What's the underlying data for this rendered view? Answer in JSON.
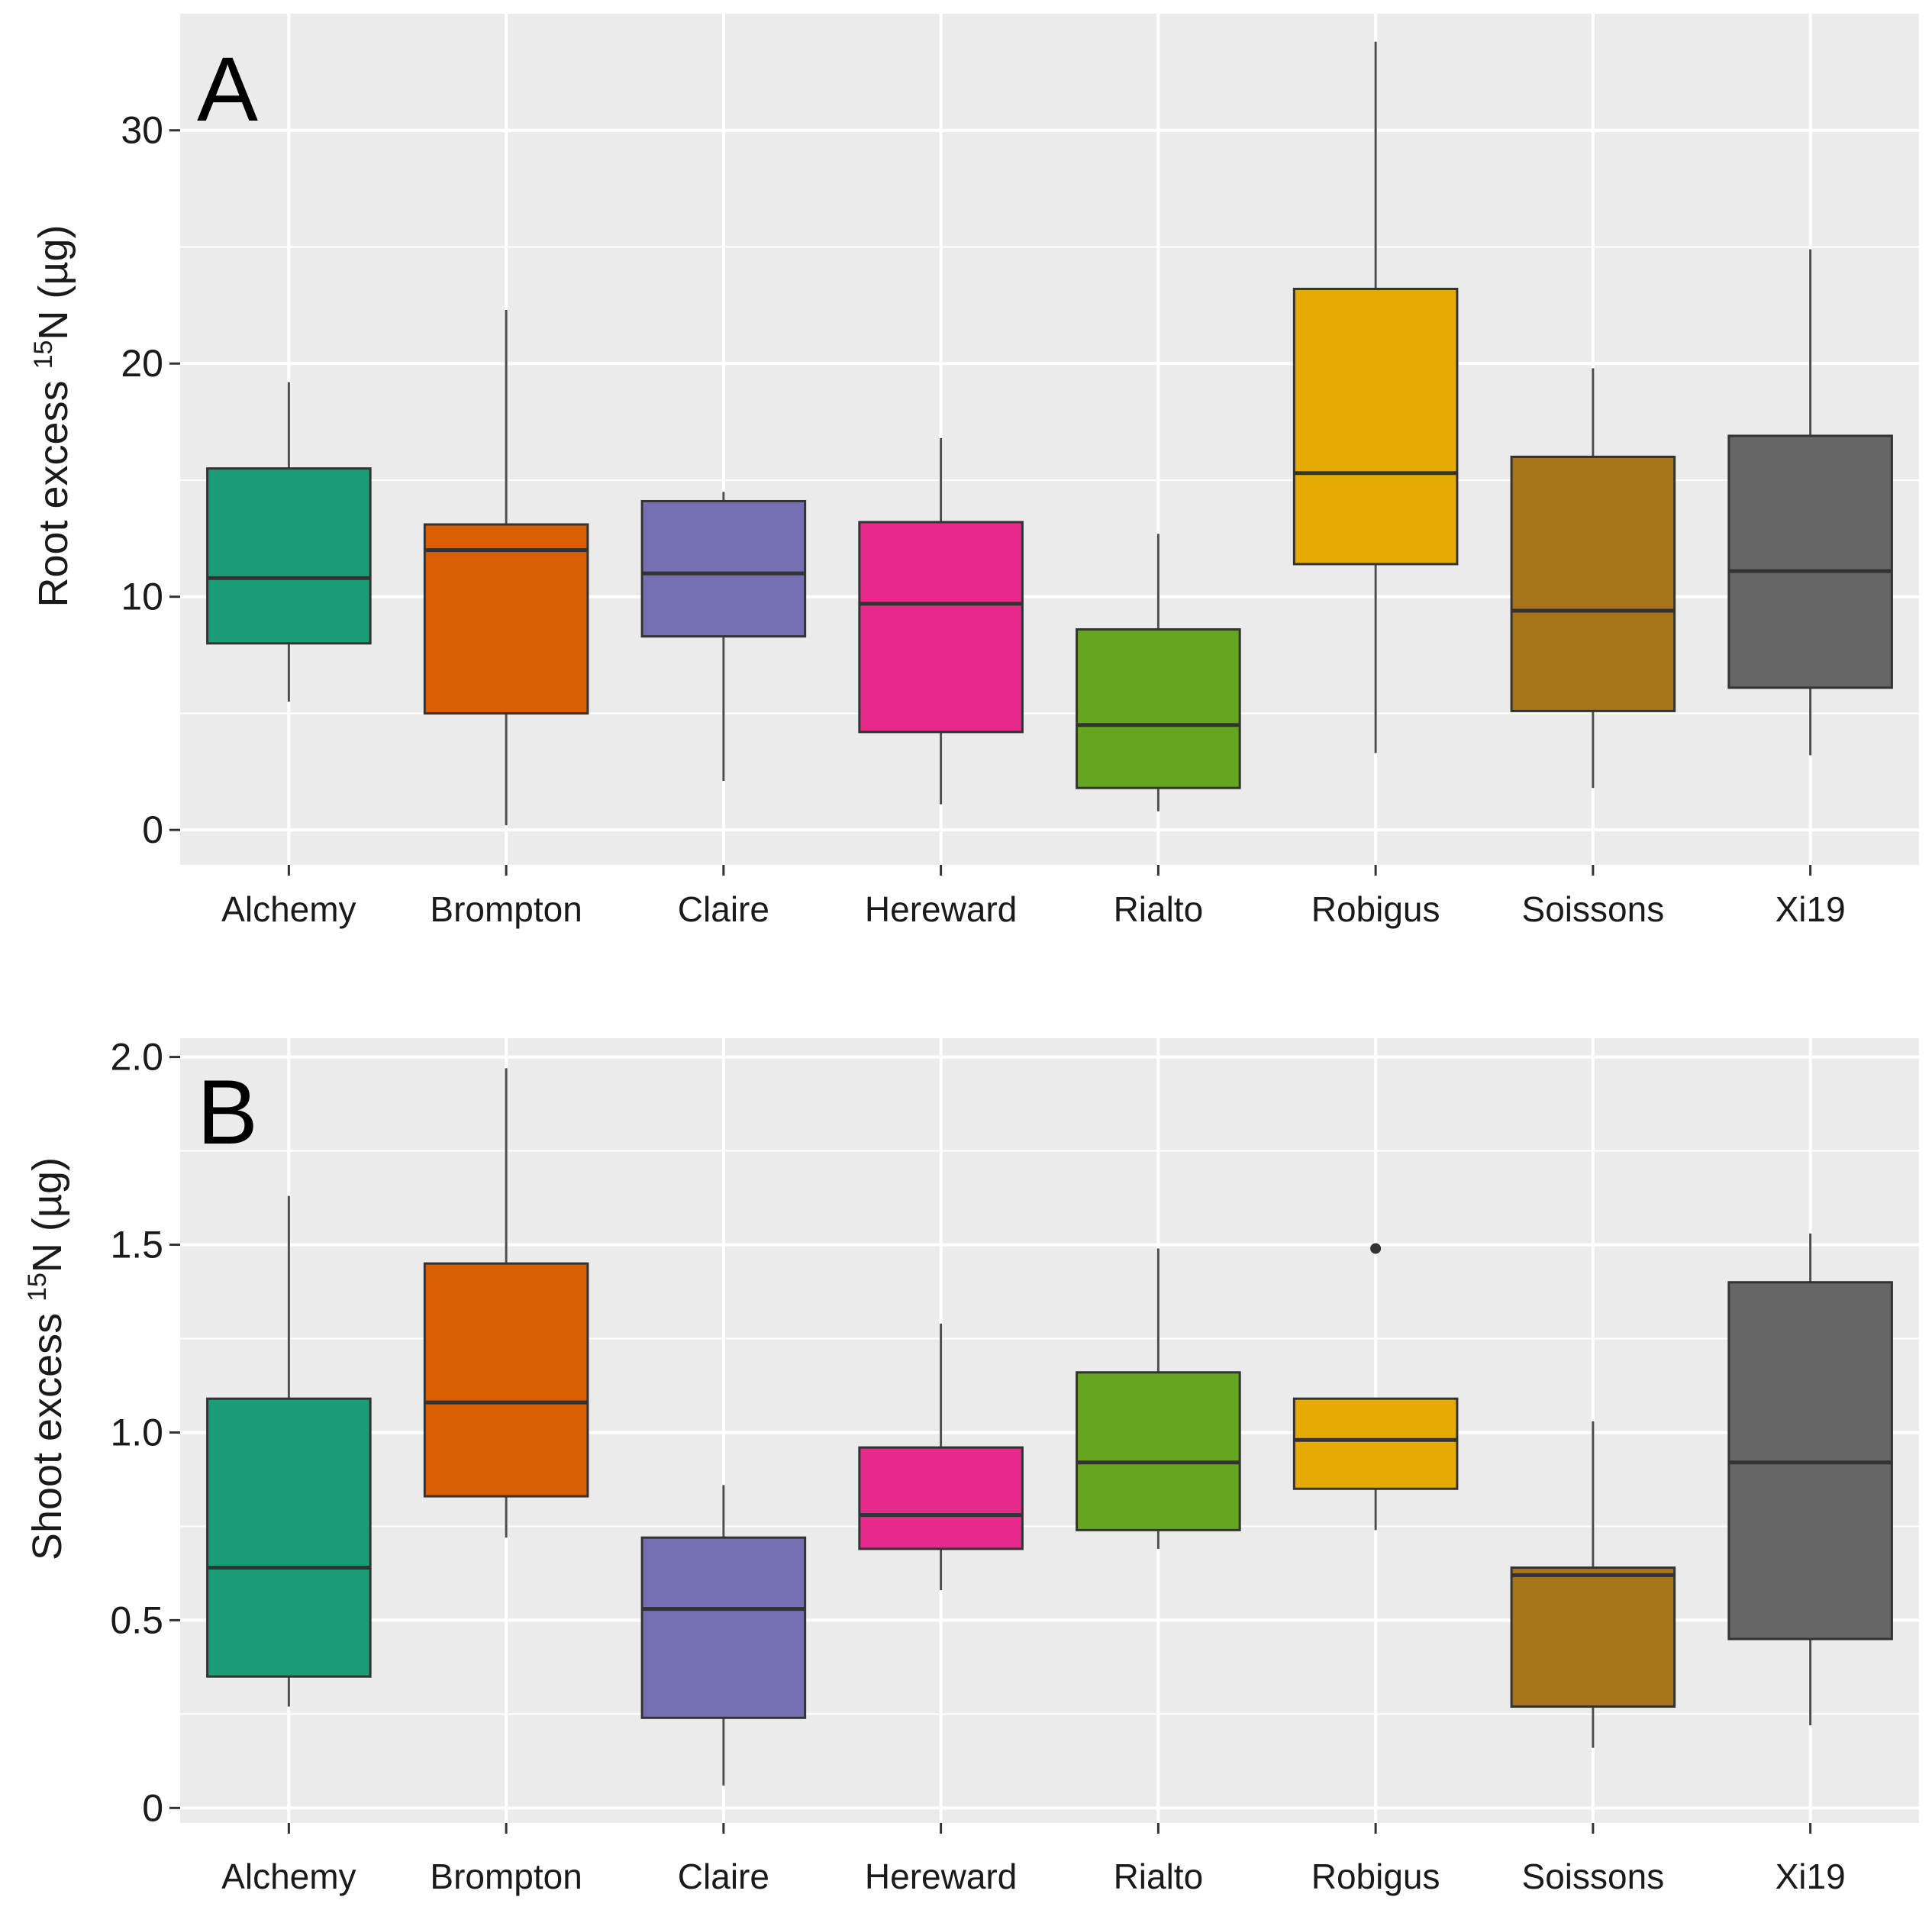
{
  "figure": {
    "background": "#ffffff",
    "panel_background": "#ebebeb",
    "grid_color": "#ffffff"
  },
  "chart_data": [
    {
      "type": "boxplot",
      "panel_label": "A",
      "ylabel_prefix": "Root excess ",
      "ylabel_superscript": "15",
      "ylabel_suffix": "N (µg)",
      "xlabel": "",
      "ylim": [
        -1.5,
        35
      ],
      "yticks": [
        0,
        10,
        20,
        30
      ],
      "ytick_labels": [
        "0",
        "10",
        "20",
        "30"
      ],
      "grid": true,
      "categories": [
        "Alchemy",
        "Brompton",
        "Claire",
        "Hereward",
        "Rialto",
        "Robigus",
        "Soissons",
        "Xi19"
      ],
      "colors": [
        "#1b9e77",
        "#d95f02",
        "#7570b3",
        "#e7298a",
        "#66a61e",
        "#e6ab02",
        "#a6761d",
        "#666666"
      ],
      "boxes": [
        {
          "low": 5.5,
          "q1": 8.0,
          "median": 10.8,
          "q3": 15.5,
          "high": 19.2,
          "outliers": []
        },
        {
          "low": 0.2,
          "q1": 5.0,
          "median": 12.0,
          "q3": 13.1,
          "high": 22.3,
          "outliers": []
        },
        {
          "low": 2.1,
          "q1": 8.3,
          "median": 11.0,
          "q3": 14.1,
          "high": 14.5,
          "outliers": []
        },
        {
          "low": 1.1,
          "q1": 4.2,
          "median": 9.7,
          "q3": 13.2,
          "high": 16.8,
          "outliers": []
        },
        {
          "low": 0.8,
          "q1": 1.8,
          "median": 4.5,
          "q3": 8.6,
          "high": 12.7,
          "outliers": []
        },
        {
          "low": 3.3,
          "q1": 11.4,
          "median": 15.3,
          "q3": 23.2,
          "high": 33.8,
          "outliers": []
        },
        {
          "low": 1.8,
          "q1": 5.1,
          "median": 9.4,
          "q3": 16.0,
          "high": 19.8,
          "outliers": []
        },
        {
          "low": 3.2,
          "q1": 6.1,
          "median": 11.1,
          "q3": 16.9,
          "high": 24.9,
          "outliers": []
        }
      ]
    },
    {
      "type": "boxplot",
      "panel_label": "B",
      "ylabel_prefix": "Shoot excess ",
      "ylabel_superscript": "15",
      "ylabel_suffix": "N (µg)",
      "xlabel": "",
      "ylim": [
        -0.04,
        2.05
      ],
      "yticks": [
        0,
        0.5,
        1.0,
        1.5,
        2.0
      ],
      "ytick_labels": [
        "0",
        "0.5",
        "1.0",
        "1.5",
        "2.0"
      ],
      "grid": true,
      "categories": [
        "Alchemy",
        "Brompton",
        "Claire",
        "Hereward",
        "Rialto",
        "Robigus",
        "Soissons",
        "Xi19"
      ],
      "colors": [
        "#1b9e77",
        "#d95f02",
        "#7570b3",
        "#e7298a",
        "#66a61e",
        "#e6ab02",
        "#a6761d",
        "#666666"
      ],
      "boxes": [
        {
          "low": 0.27,
          "q1": 0.35,
          "median": 0.64,
          "q3": 1.09,
          "high": 1.63,
          "outliers": []
        },
        {
          "low": 0.72,
          "q1": 0.83,
          "median": 1.08,
          "q3": 1.45,
          "high": 1.97,
          "outliers": []
        },
        {
          "low": 0.06,
          "q1": 0.24,
          "median": 0.53,
          "q3": 0.72,
          "high": 0.86,
          "outliers": []
        },
        {
          "low": 0.58,
          "q1": 0.69,
          "median": 0.78,
          "q3": 0.96,
          "high": 1.29,
          "outliers": []
        },
        {
          "low": 0.69,
          "q1": 0.74,
          "median": 0.92,
          "q3": 1.16,
          "high": 1.49,
          "outliers": []
        },
        {
          "low": 0.74,
          "q1": 0.85,
          "median": 0.98,
          "q3": 1.09,
          "high": 1.09,
          "outliers": [
            1.49
          ]
        },
        {
          "low": 0.16,
          "q1": 0.27,
          "median": 0.62,
          "q3": 0.64,
          "high": 1.03,
          "outliers": []
        },
        {
          "low": 0.22,
          "q1": 0.45,
          "median": 0.92,
          "q3": 1.4,
          "high": 1.53,
          "outliers": []
        }
      ]
    }
  ]
}
